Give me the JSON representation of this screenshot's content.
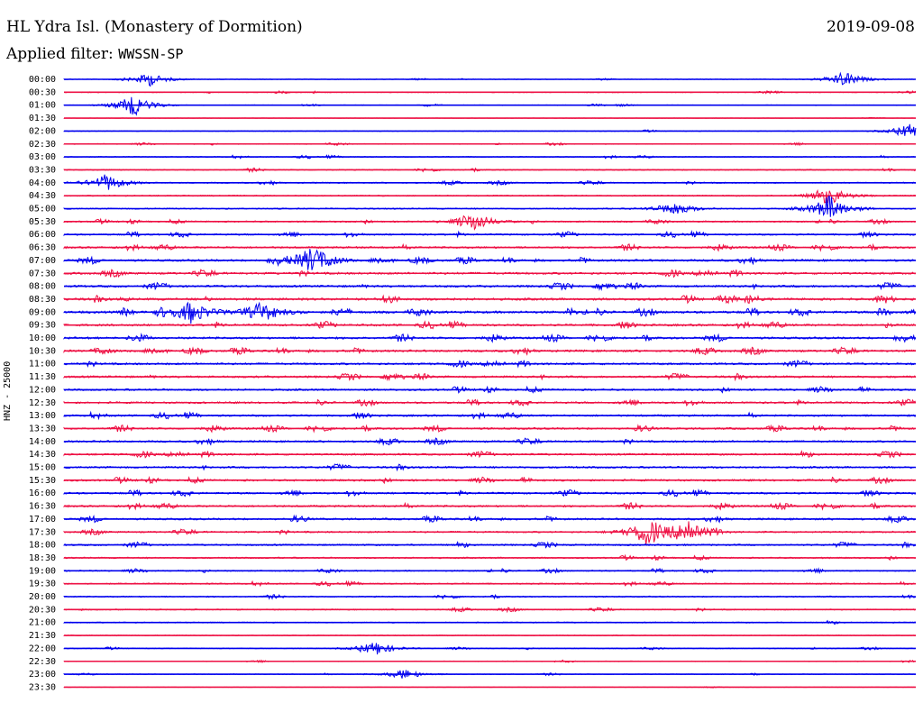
{
  "header": {
    "station": "HL Ydra Isl. (Monastery of Dormition)",
    "date": "2019-09-08",
    "filter_label": "Applied filter: ",
    "filter_value": "WWSSN-SP"
  },
  "axis": {
    "ylabel": "HNZ - 25000"
  },
  "colors": {
    "trace_a": "#0000ee",
    "trace_b": "#ee1144"
  },
  "chart_data": {
    "type": "line",
    "title": "HL Ydra Isl. (Monastery of Dormition)",
    "ylabel": "HNZ - 25000",
    "grid": false,
    "legend": "none",
    "row_labels": [
      "00:00",
      "00:30",
      "01:00",
      "01:30",
      "02:00",
      "02:30",
      "03:00",
      "03:30",
      "04:00",
      "04:30",
      "05:00",
      "05:30",
      "06:00",
      "06:30",
      "07:00",
      "07:30",
      "08:00",
      "08:30",
      "09:00",
      "09:30",
      "10:00",
      "10:30",
      "11:00",
      "11:30",
      "12:00",
      "12:30",
      "13:00",
      "13:30",
      "14:00",
      "14:30",
      "15:00",
      "15:30",
      "16:00",
      "16:30",
      "17:00",
      "17:30",
      "18:00",
      "18:30",
      "19:00",
      "19:30",
      "20:00",
      "20:30",
      "21:00",
      "21:30",
      "22:00",
      "22:30",
      "23:00",
      "23:30"
    ],
    "relative_noise_level": [
      0.25,
      0.35,
      0.3,
      0.15,
      0.3,
      0.35,
      0.4,
      0.45,
      0.5,
      0.5,
      0.55,
      0.6,
      0.7,
      0.8,
      0.9,
      0.9,
      0.9,
      1.0,
      1.0,
      0.9,
      0.9,
      0.9,
      0.85,
      0.85,
      0.8,
      0.8,
      0.8,
      0.8,
      0.8,
      0.8,
      0.8,
      0.8,
      0.8,
      0.8,
      0.8,
      0.7,
      0.7,
      0.6,
      0.55,
      0.55,
      0.5,
      0.5,
      0.45,
      0.4,
      0.35,
      0.3,
      0.3,
      0.15
    ],
    "events": [
      {
        "time": "00:00",
        "minute": 3,
        "amplitude": 0.8
      },
      {
        "time": "00:00",
        "minute": 27.5,
        "amplitude": 0.9
      },
      {
        "time": "01:00",
        "minute": 2.5,
        "amplitude": 1.2
      },
      {
        "time": "02:00",
        "minute": 29.8,
        "amplitude": 0.8
      },
      {
        "time": "04:00",
        "minute": 1.5,
        "amplitude": 1.0
      },
      {
        "time": "04:30",
        "minute": 27,
        "amplitude": 1.0
      },
      {
        "time": "05:00",
        "minute": 27,
        "amplitude": 1.6
      },
      {
        "time": "05:00",
        "minute": 21.5,
        "amplitude": 0.8
      },
      {
        "time": "05:30",
        "minute": 14.5,
        "amplitude": 1.0
      },
      {
        "time": "07:00",
        "minute": 8.7,
        "amplitude": 1.6
      },
      {
        "time": "09:00",
        "minute": 4.5,
        "amplitude": 1.3
      },
      {
        "time": "09:00",
        "minute": 7.0,
        "amplitude": 1.2
      },
      {
        "time": "17:30",
        "minute": 20.5,
        "amplitude": 1.4
      },
      {
        "time": "17:30",
        "minute": 22.0,
        "amplitude": 1.3
      },
      {
        "time": "22:00",
        "minute": 11.0,
        "amplitude": 0.8
      },
      {
        "time": "23:00",
        "minute": 12.0,
        "amplitude": 0.6
      }
    ]
  }
}
